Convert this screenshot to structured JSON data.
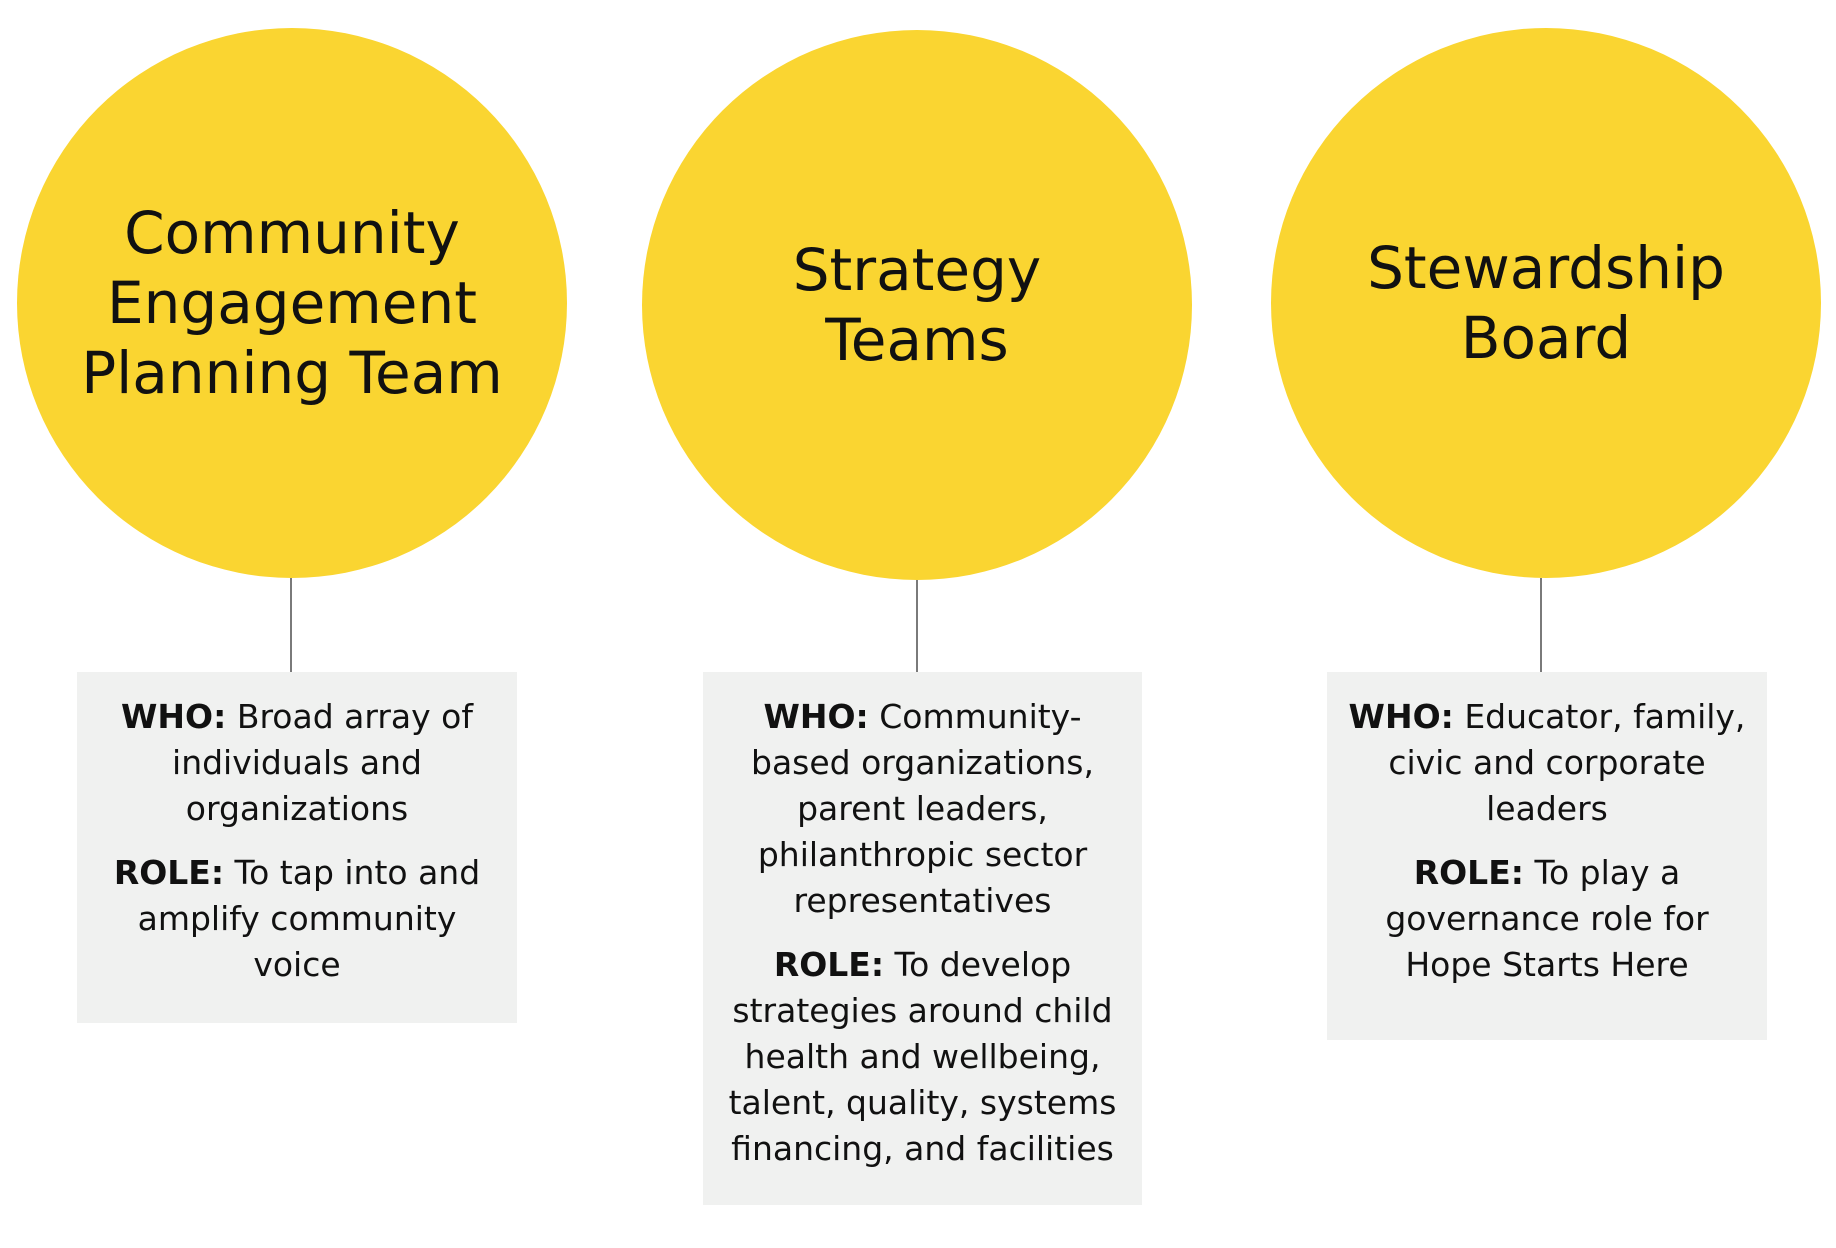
{
  "colors": {
    "circle_fill": "#fad531",
    "card_fill": "#f0f1f0",
    "connector": "#7a7a7a",
    "text": "#111111"
  },
  "columns": [
    {
      "title": "Community\nEngagement\nPlanning Team",
      "who_label": "WHO:",
      "who_text": "Broad array of individuals and organizations",
      "role_label": "ROLE:",
      "role_text": "To tap into and amplify community voice"
    },
    {
      "title": "Strategy\nTeams",
      "who_label": "WHO:",
      "who_text": "Community-based organizations, parent leaders, philanthropic sector representatives",
      "role_label": "ROLE:",
      "role_text": "To develop strategies around child health and wellbeing, talent, quality, systems financing, and facilities"
    },
    {
      "title": "Stewardship\nBoard",
      "who_label": "WHO:",
      "who_text": "Educator, family, civic and corporate leaders",
      "role_label": "ROLE:",
      "role_text": "To play a governance role for Hope Starts Here"
    }
  ]
}
